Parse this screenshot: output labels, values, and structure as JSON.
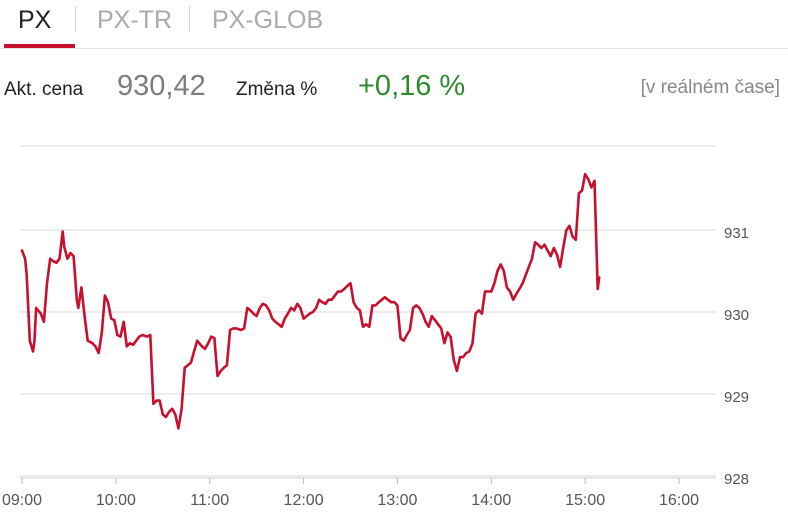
{
  "tabs": [
    {
      "label": "PX",
      "active": true
    },
    {
      "label": "PX-TR",
      "active": false
    },
    {
      "label": "PX-GLOB",
      "active": false
    }
  ],
  "quote": {
    "price_label": "Akt. cena",
    "price_value": "930,42",
    "change_label": "Změna %",
    "change_value": "+0,16 %",
    "realtime_label": "[v reálném čase]"
  },
  "colors": {
    "accent": "#c8102e",
    "positive": "#2f8a2f",
    "grid": "#d9d9d9"
  },
  "chart_data": {
    "type": "line",
    "title": "",
    "xlabel": "",
    "ylabel": "",
    "ylim": [
      928,
      932
    ],
    "xlim": [
      "09:00",
      "16:20"
    ],
    "x_ticks": [
      "09:00",
      "10:00",
      "11:00",
      "12:00",
      "13:00",
      "14:00",
      "15:00",
      "16:00"
    ],
    "y_ticks": [
      "928",
      "929",
      "930",
      "931"
    ],
    "grid": true,
    "series": [
      {
        "name": "",
        "color": "#c8102e",
        "points": [
          [
            "09:00",
            930.75
          ],
          [
            "09:02",
            930.65
          ],
          [
            "09:03",
            930.45
          ],
          [
            "09:05",
            929.65
          ],
          [
            "09:07",
            929.52
          ],
          [
            "09:08",
            929.65
          ],
          [
            "09:09",
            930.05
          ],
          [
            "09:12",
            929.98
          ],
          [
            "09:14",
            929.88
          ],
          [
            "09:16",
            930.35
          ],
          [
            "09:18",
            930.65
          ],
          [
            "09:20",
            930.62
          ],
          [
            "09:22",
            930.6
          ],
          [
            "09:24",
            930.65
          ],
          [
            "09:26",
            930.98
          ],
          [
            "09:27",
            930.8
          ],
          [
            "09:29",
            930.65
          ],
          [
            "09:31",
            930.72
          ],
          [
            "09:33",
            930.68
          ],
          [
            "09:35",
            930.15
          ],
          [
            "09:36",
            930.05
          ],
          [
            "09:38",
            930.3
          ],
          [
            "09:40",
            929.95
          ],
          [
            "09:42",
            929.65
          ],
          [
            "09:45",
            929.62
          ],
          [
            "09:47",
            929.58
          ],
          [
            "09:49",
            929.5
          ],
          [
            "09:51",
            929.75
          ],
          [
            "09:53",
            930.2
          ],
          [
            "09:55",
            930.12
          ],
          [
            "09:57",
            929.92
          ],
          [
            "09:59",
            929.9
          ],
          [
            "10:01",
            929.72
          ],
          [
            "10:03",
            929.7
          ],
          [
            "10:05",
            929.88
          ],
          [
            "10:07",
            929.58
          ],
          [
            "10:09",
            929.62
          ],
          [
            "10:11",
            929.6
          ],
          [
            "10:13",
            929.65
          ],
          [
            "10:15",
            929.7
          ],
          [
            "10:17",
            929.72
          ],
          [
            "10:20",
            929.7
          ],
          [
            "10:22",
            929.72
          ],
          [
            "10:24",
            928.88
          ],
          [
            "10:26",
            928.92
          ],
          [
            "10:28",
            928.92
          ],
          [
            "10:30",
            928.75
          ],
          [
            "10:32",
            928.72
          ],
          [
            "10:34",
            928.78
          ],
          [
            "10:36",
            928.82
          ],
          [
            "10:38",
            928.75
          ],
          [
            "10:40",
            928.58
          ],
          [
            "10:42",
            928.82
          ],
          [
            "10:44",
            929.32
          ],
          [
            "10:46",
            929.35
          ],
          [
            "10:48",
            929.38
          ],
          [
            "10:50",
            929.52
          ],
          [
            "10:52",
            929.65
          ],
          [
            "10:55",
            929.58
          ],
          [
            "10:57",
            929.55
          ],
          [
            "10:59",
            929.62
          ],
          [
            "11:01",
            929.7
          ],
          [
            "11:03",
            929.68
          ],
          [
            "11:05",
            929.22
          ],
          [
            "11:07",
            929.28
          ],
          [
            "11:09",
            929.32
          ],
          [
            "11:11",
            929.35
          ],
          [
            "11:13",
            929.78
          ],
          [
            "11:15",
            929.8
          ],
          [
            "11:17",
            929.8
          ],
          [
            "11:20",
            929.78
          ],
          [
            "11:22",
            929.8
          ],
          [
            "11:24",
            930.05
          ],
          [
            "11:26",
            930.02
          ],
          [
            "11:28",
            929.98
          ],
          [
            "11:30",
            929.95
          ],
          [
            "11:32",
            930.05
          ],
          [
            "11:34",
            930.1
          ],
          [
            "11:36",
            930.08
          ],
          [
            "11:38",
            930.02
          ],
          [
            "11:40",
            929.92
          ],
          [
            "11:42",
            929.88
          ],
          [
            "11:44",
            929.85
          ],
          [
            "11:46",
            929.82
          ],
          [
            "11:48",
            929.92
          ],
          [
            "11:50",
            929.98
          ],
          [
            "11:52",
            930.05
          ],
          [
            "11:54",
            930.02
          ],
          [
            "11:56",
            930.1
          ],
          [
            "11:58",
            930.05
          ],
          [
            "12:00",
            929.92
          ],
          [
            "12:02",
            929.95
          ],
          [
            "12:04",
            929.98
          ],
          [
            "12:06",
            930.0
          ],
          [
            "12:08",
            930.05
          ],
          [
            "12:10",
            930.15
          ],
          [
            "12:12",
            930.12
          ],
          [
            "12:14",
            930.1
          ],
          [
            "12:16",
            930.15
          ],
          [
            "12:18",
            930.15
          ],
          [
            "12:20",
            930.2
          ],
          [
            "12:22",
            930.25
          ],
          [
            "12:24",
            930.25
          ],
          [
            "12:26",
            930.28
          ],
          [
            "12:28",
            930.32
          ],
          [
            "12:30",
            930.35
          ],
          [
            "12:32",
            930.12
          ],
          [
            "12:34",
            930.05
          ],
          [
            "12:36",
            930.02
          ],
          [
            "12:38",
            929.82
          ],
          [
            "12:40",
            929.85
          ],
          [
            "12:42",
            929.82
          ],
          [
            "12:44",
            930.08
          ],
          [
            "12:46",
            930.08
          ],
          [
            "12:48",
            930.12
          ],
          [
            "12:50",
            930.15
          ],
          [
            "12:52",
            930.18
          ],
          [
            "12:54",
            930.15
          ],
          [
            "12:56",
            930.12
          ],
          [
            "12:58",
            930.12
          ],
          [
            "13:00",
            930.08
          ],
          [
            "13:02",
            929.68
          ],
          [
            "13:04",
            929.65
          ],
          [
            "13:06",
            929.72
          ],
          [
            "13:08",
            929.78
          ],
          [
            "13:10",
            930.05
          ],
          [
            "13:12",
            930.08
          ],
          [
            "13:14",
            930.05
          ],
          [
            "13:16",
            929.98
          ],
          [
            "13:18",
            929.88
          ],
          [
            "13:20",
            929.82
          ],
          [
            "13:22",
            929.95
          ],
          [
            "13:24",
            929.9
          ],
          [
            "13:26",
            929.85
          ],
          [
            "13:28",
            929.8
          ],
          [
            "13:30",
            929.62
          ],
          [
            "13:32",
            929.75
          ],
          [
            "13:34",
            929.7
          ],
          [
            "13:36",
            929.42
          ],
          [
            "13:38",
            929.28
          ],
          [
            "13:40",
            929.45
          ],
          [
            "13:42",
            929.45
          ],
          [
            "13:44",
            929.5
          ],
          [
            "13:46",
            929.52
          ],
          [
            "13:48",
            929.62
          ],
          [
            "13:50",
            929.98
          ],
          [
            "13:52",
            930.02
          ],
          [
            "13:54",
            929.98
          ],
          [
            "13:56",
            930.25
          ],
          [
            "13:58",
            930.25
          ],
          [
            "14:00",
            930.25
          ],
          [
            "14:02",
            930.35
          ],
          [
            "14:04",
            930.5
          ],
          [
            "14:06",
            930.58
          ],
          [
            "14:08",
            930.5
          ],
          [
            "14:10",
            930.3
          ],
          [
            "14:12",
            930.25
          ],
          [
            "14:14",
            930.15
          ],
          [
            "14:16",
            930.22
          ],
          [
            "14:18",
            930.28
          ],
          [
            "14:20",
            930.35
          ],
          [
            "14:22",
            930.45
          ],
          [
            "14:24",
            930.55
          ],
          [
            "14:26",
            930.65
          ],
          [
            "14:28",
            930.85
          ],
          [
            "14:30",
            930.82
          ],
          [
            "14:32",
            930.78
          ],
          [
            "14:34",
            930.82
          ],
          [
            "14:36",
            930.75
          ],
          [
            "14:38",
            930.68
          ],
          [
            "14:40",
            930.78
          ],
          [
            "14:42",
            930.7
          ],
          [
            "14:44",
            930.55
          ],
          [
            "14:46",
            930.78
          ],
          [
            "14:48",
            931.0
          ],
          [
            "14:50",
            931.05
          ],
          [
            "14:52",
            930.92
          ],
          [
            "14:54",
            930.88
          ],
          [
            "14:56",
            931.45
          ],
          [
            "14:58",
            931.48
          ],
          [
            "15:00",
            931.68
          ],
          [
            "15:02",
            931.62
          ],
          [
            "15:04",
            931.52
          ],
          [
            "15:06",
            931.6
          ],
          [
            "15:08",
            930.28
          ],
          [
            "15:09",
            930.42
          ]
        ]
      }
    ]
  }
}
